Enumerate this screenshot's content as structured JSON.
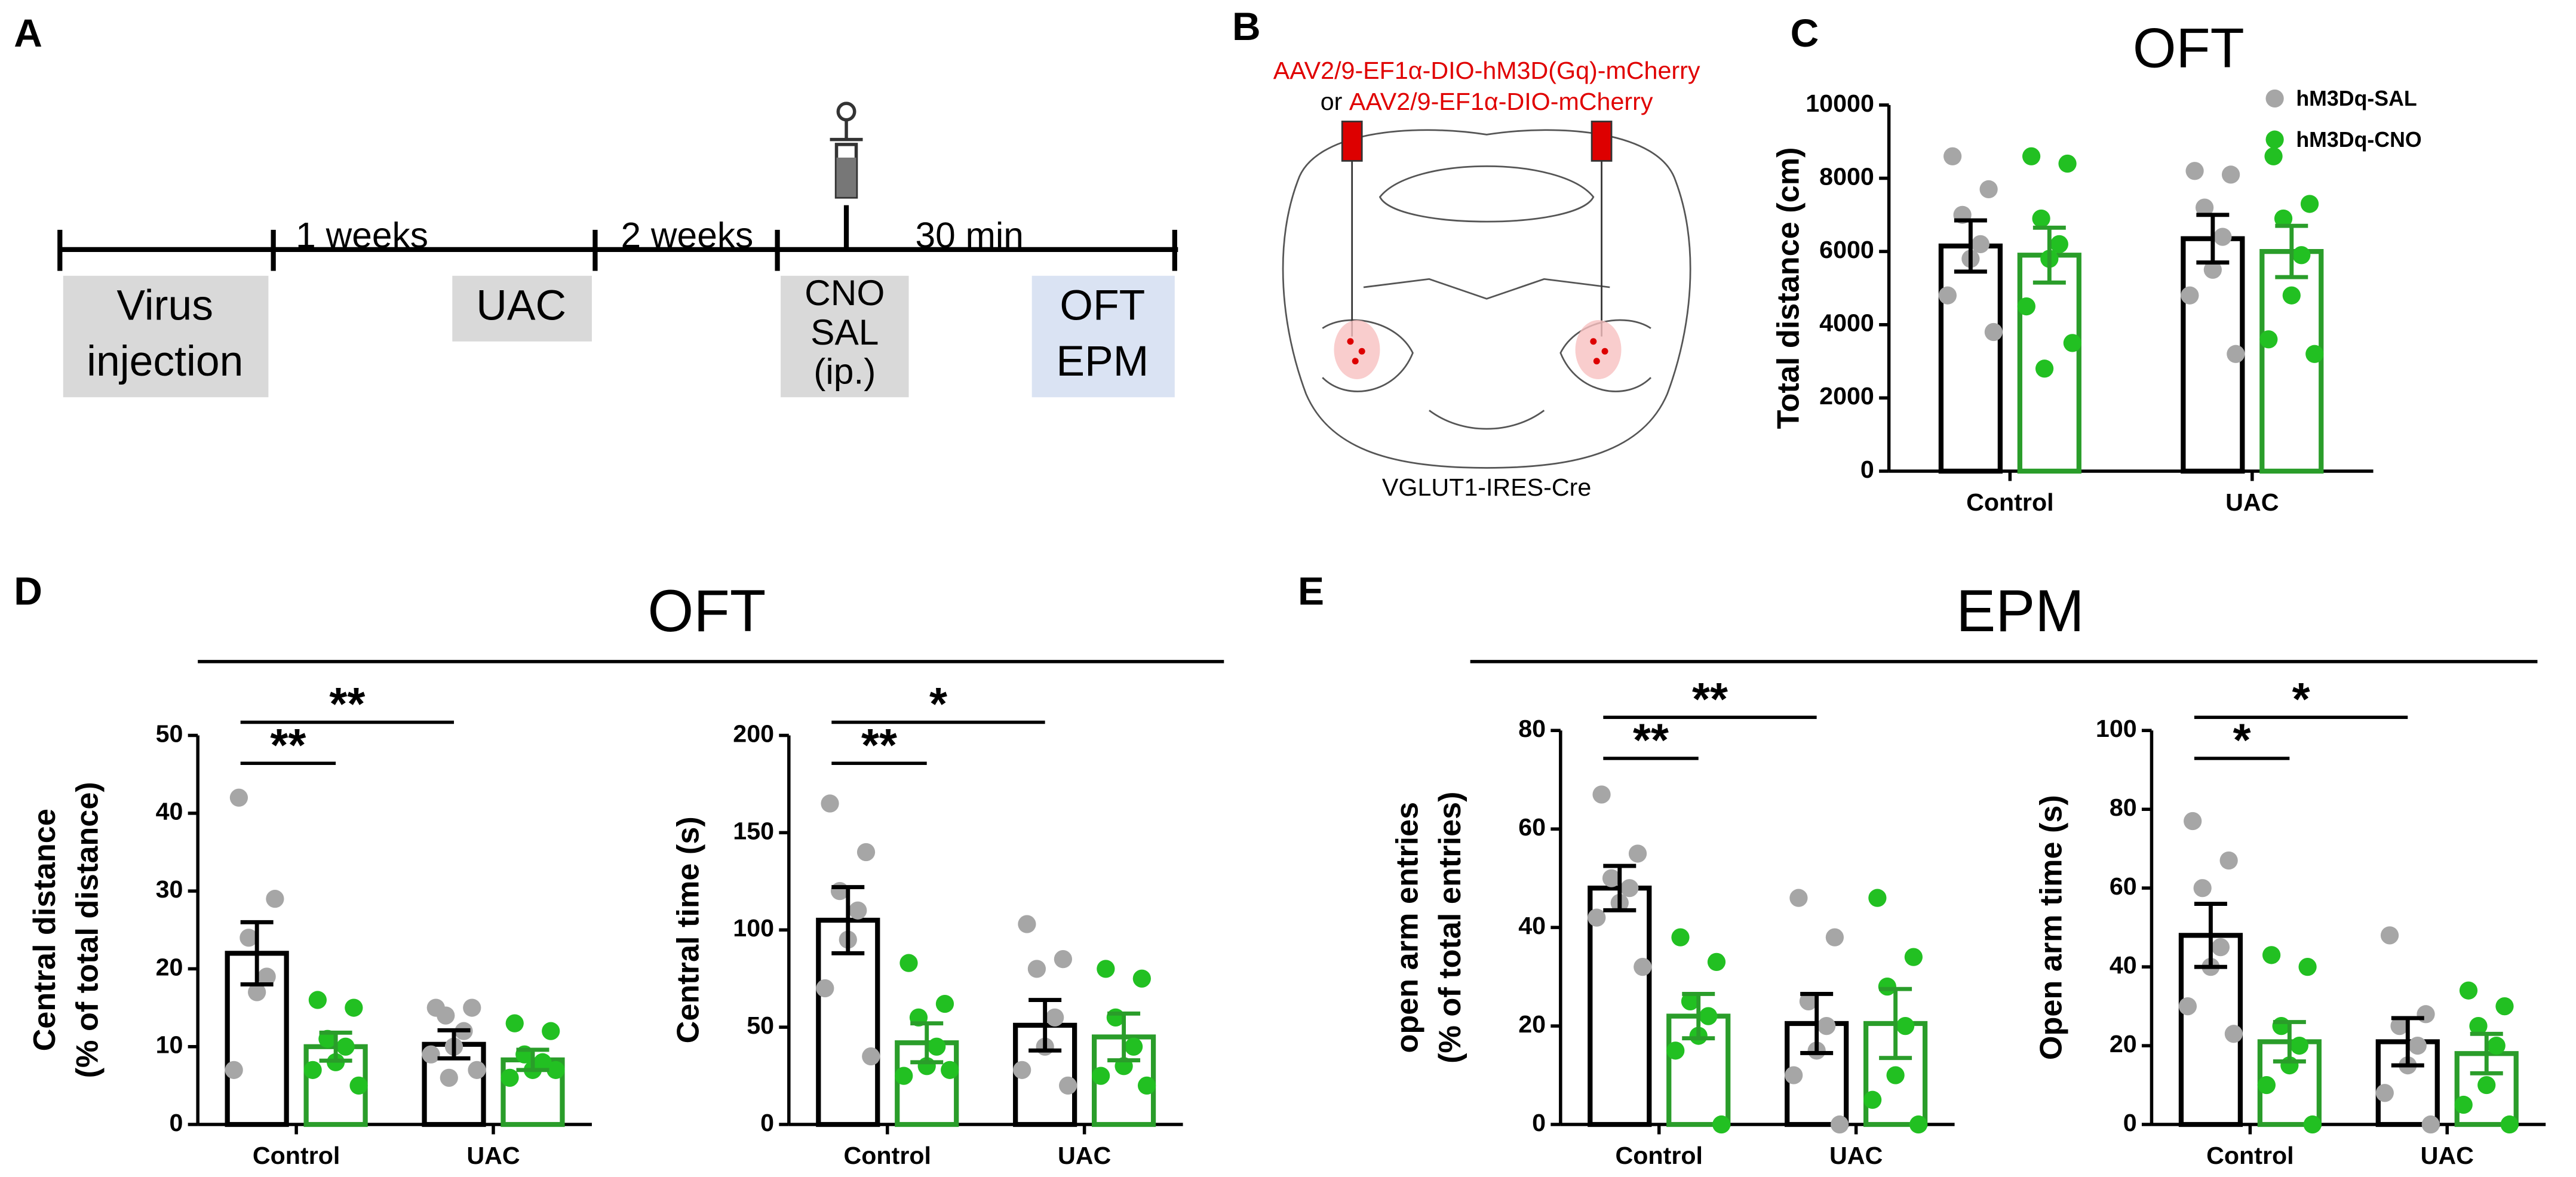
{
  "panel_labels": [
    "A",
    "B",
    "C",
    "D",
    "E"
  ],
  "timeline": {
    "intervals": [
      "1 weeks",
      "2 weeks",
      "30 min"
    ],
    "boxes": [
      [
        "Virus",
        "injection"
      ],
      [
        "UAC"
      ],
      [
        "CNO",
        "SAL",
        "(ip.)"
      ],
      [
        "OFT",
        "EPM"
      ]
    ]
  },
  "brain": {
    "vector_1": "AAV2/9-EF1α-DIO-hM3D(Gq)-mCherry",
    "connector": "or",
    "vector_2": "AAV2/9-EF1α-DIO-mCherry",
    "mouse_line": "VGLUT1-IRES-Cre"
  },
  "sections": [
    "OFT",
    "EPM"
  ],
  "chart_data": [
    {
      "type": "bar",
      "title": "OFT",
      "ylabel": [
        "Total distance (cm)"
      ],
      "categories": [
        "Control",
        "UAC"
      ],
      "ylim": [
        0,
        10000
      ],
      "yticks": [
        0,
        2000,
        4000,
        6000,
        8000,
        10000
      ],
      "legend": true,
      "significance": [],
      "series": [
        {
          "name": "hM3Dq-SAL",
          "color": "#a6a6a6",
          "edge": "#000000",
          "values": [
            6150,
            6350
          ],
          "errors": [
            700,
            650
          ],
          "points": [
            [
              8600,
              7700,
              7000,
              6200,
              5800,
              4800,
              3800
            ],
            [
              8200,
              8100,
              7200,
              6400,
              5500,
              4800,
              3200
            ]
          ]
        },
        {
          "name": "hM3Dq-CNO",
          "color": "#22c022",
          "edge": "#2a9d2a",
          "values": [
            5900,
            6000
          ],
          "errors": [
            750,
            700
          ],
          "points": [
            [
              8600,
              8400,
              6900,
              6200,
              5800,
              4500,
              3500,
              2800
            ],
            [
              8600,
              7300,
              6900,
              5900,
              4800,
              3600,
              3200
            ]
          ]
        }
      ]
    },
    {
      "type": "bar",
      "ylabel": [
        "Central distance",
        "(% of total distance)"
      ],
      "categories": [
        "Control",
        "UAC"
      ],
      "ylim": [
        0,
        50
      ],
      "yticks": [
        0,
        10,
        20,
        30,
        40,
        50
      ],
      "legend": false,
      "significance": [
        "**",
        "**"
      ],
      "series": [
        {
          "name": "hM3Dq-SAL",
          "color": "#a6a6a6",
          "edge": "#000000",
          "values": [
            22,
            10.3
          ],
          "errors": [
            4,
            1.8
          ],
          "points": [
            [
              42,
              29,
              24,
              19,
              17,
              7
            ],
            [
              15,
              15,
              14,
              12,
              10,
              9,
              7,
              6
            ]
          ]
        },
        {
          "name": "hM3Dq-CNO",
          "color": "#22c022",
          "edge": "#2a9d2a",
          "values": [
            10,
            8.3
          ],
          "errors": [
            1.8,
            1.3
          ],
          "points": [
            [
              16,
              15,
              11,
              10,
              8,
              7,
              5
            ],
            [
              13,
              12,
              9,
              8,
              7,
              6,
              7
            ]
          ]
        }
      ]
    },
    {
      "type": "bar",
      "ylabel": [
        "Central time (s)"
      ],
      "categories": [
        "Control",
        "UAC"
      ],
      "ylim": [
        0,
        200
      ],
      "yticks": [
        0,
        50,
        100,
        150,
        200
      ],
      "legend": false,
      "significance": [
        "**",
        "*"
      ],
      "series": [
        {
          "name": "hM3Dq-SAL",
          "color": "#a6a6a6",
          "edge": "#000000",
          "values": [
            105,
            51
          ],
          "errors": [
            17,
            13
          ],
          "points": [
            [
              165,
              140,
              120,
              110,
              95,
              70,
              35
            ],
            [
              103,
              85,
              80,
              55,
              40,
              28,
              20
            ]
          ]
        },
        {
          "name": "hM3Dq-CNO",
          "color": "#22c022",
          "edge": "#2a9d2a",
          "values": [
            42,
            45
          ],
          "errors": [
            10,
            12
          ],
          "points": [
            [
              83,
              62,
              55,
              40,
              30,
              25,
              28
            ],
            [
              80,
              75,
              55,
              40,
              30,
              25,
              20
            ]
          ]
        }
      ]
    },
    {
      "type": "bar",
      "ylabel": [
        "open arm entries",
        "(% of total entries)"
      ],
      "categories": [
        "Control",
        "UAC"
      ],
      "ylim": [
        0,
        80
      ],
      "yticks": [
        0,
        20,
        40,
        60,
        80
      ],
      "legend": false,
      "significance": [
        "**",
        "**"
      ],
      "series": [
        {
          "name": "hM3Dq-SAL",
          "color": "#a6a6a6",
          "edge": "#000000",
          "values": [
            48,
            20.5
          ],
          "errors": [
            4.5,
            6
          ],
          "points": [
            [
              67,
              55,
              50,
              48,
              45,
              42,
              32
            ],
            [
              46,
              38,
              25,
              20,
              15,
              10,
              0
            ]
          ]
        },
        {
          "name": "hM3Dq-CNO",
          "color": "#22c022",
          "edge": "#2a9d2a",
          "values": [
            22,
            20.5
          ],
          "errors": [
            4.5,
            7
          ],
          "points": [
            [
              38,
              33,
              25,
              22,
              18,
              15,
              0
            ],
            [
              46,
              34,
              28,
              20,
              10,
              5,
              0
            ]
          ]
        }
      ]
    },
    {
      "type": "bar",
      "ylabel": [
        "Open arm time (s)"
      ],
      "categories": [
        "Control",
        "UAC"
      ],
      "ylim": [
        0,
        100
      ],
      "yticks": [
        0,
        20,
        40,
        60,
        80,
        100
      ],
      "legend": false,
      "significance": [
        "*",
        "*"
      ],
      "series": [
        {
          "name": "hM3Dq-SAL",
          "color": "#a6a6a6",
          "edge": "#000000",
          "values": [
            48,
            21
          ],
          "errors": [
            8,
            6
          ],
          "points": [
            [
              77,
              67,
              60,
              45,
              40,
              30,
              23
            ],
            [
              48,
              28,
              25,
              20,
              15,
              8,
              0
            ]
          ]
        },
        {
          "name": "hM3Dq-CNO",
          "color": "#22c022",
          "edge": "#2a9d2a",
          "values": [
            21,
            18
          ],
          "errors": [
            5,
            5
          ],
          "points": [
            [
              43,
              40,
              25,
              20,
              15,
              10,
              0
            ],
            [
              34,
              30,
              25,
              20,
              10,
              5,
              0
            ]
          ]
        }
      ]
    }
  ]
}
